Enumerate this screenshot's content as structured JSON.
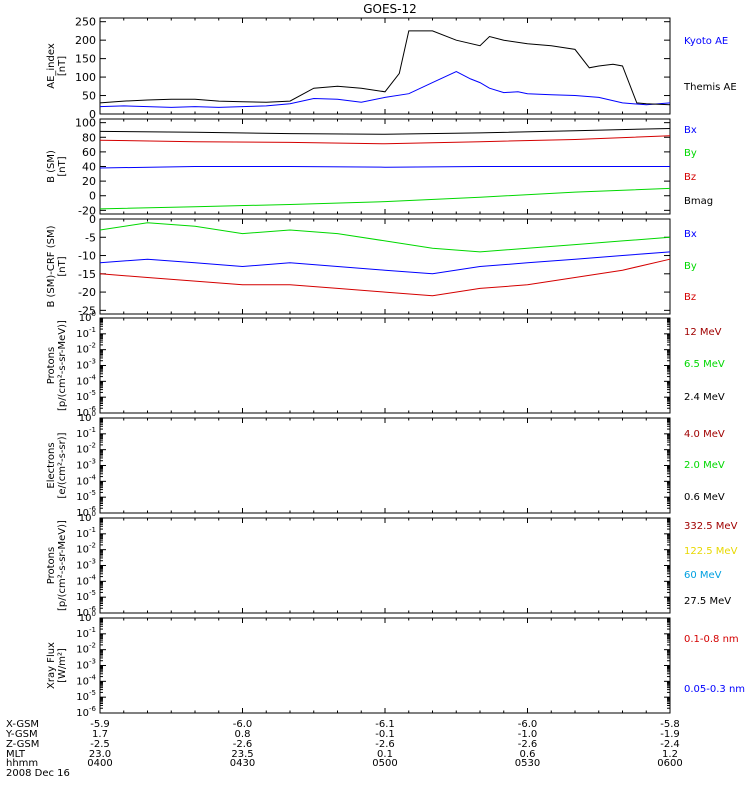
{
  "title": "GOES-12",
  "colors": {
    "black": "#000000",
    "blue": "#0000ff",
    "red": "#d40000",
    "green": "#00d800",
    "darkred": "#a00000",
    "gold": "#e8d800",
    "cyan": "#00a0e0",
    "axis": "#000000"
  },
  "chart_data": [
    {
      "type": "line",
      "id": "ae",
      "ylabel": [
        "AE_index",
        "[nT]"
      ],
      "ylim": [
        0,
        260
      ],
      "ticks": [
        0,
        50,
        100,
        150,
        200,
        250
      ],
      "tick_labels": [
        "0",
        "50",
        "100",
        "150",
        "200",
        "250"
      ],
      "series": [
        {
          "name": "Kyoto AE",
          "color": "#0000ff",
          "x": [
            0,
            5,
            10,
            15,
            20,
            25,
            30,
            35,
            40,
            45,
            50,
            55,
            60,
            65,
            70,
            75,
            78,
            80,
            82,
            85,
            88,
            90,
            95,
            100,
            105,
            110,
            115,
            120
          ],
          "y": [
            20,
            22,
            20,
            18,
            20,
            18,
            20,
            22,
            28,
            42,
            40,
            32,
            45,
            55,
            85,
            115,
            95,
            85,
            70,
            58,
            60,
            55,
            52,
            50,
            45,
            30,
            25,
            30
          ]
        },
        {
          "name": "Themis AE",
          "color": "#000000",
          "x": [
            0,
            5,
            10,
            15,
            20,
            25,
            30,
            35,
            40,
            45,
            50,
            55,
            60,
            63,
            65,
            70,
            75,
            80,
            82,
            85,
            90,
            95,
            100,
            103,
            105,
            108,
            110,
            113,
            115,
            120
          ],
          "y": [
            30,
            35,
            38,
            40,
            40,
            35,
            33,
            32,
            35,
            70,
            75,
            70,
            60,
            110,
            225,
            225,
            200,
            185,
            210,
            200,
            190,
            185,
            175,
            125,
            130,
            135,
            130,
            30,
            28,
            25
          ]
        }
      ]
    },
    {
      "type": "line",
      "id": "bsm",
      "ylabel": [
        "B (SM)",
        "[nT]"
      ],
      "ylim": [
        -25,
        105
      ],
      "ticks": [
        -20,
        0,
        20,
        40,
        60,
        80,
        100
      ],
      "tick_labels": [
        "-20",
        "0",
        "20",
        "40",
        "60",
        "80",
        "100"
      ],
      "series": [
        {
          "name": "Bx",
          "color": "#0000ff",
          "x": [
            0,
            20,
            40,
            60,
            80,
            100,
            120
          ],
          "y": [
            38,
            40,
            40,
            39,
            40,
            40,
            40
          ]
        },
        {
          "name": "By",
          "color": "#00d800",
          "x": [
            0,
            20,
            40,
            60,
            80,
            100,
            120
          ],
          "y": [
            -18,
            -15,
            -12,
            -8,
            -2,
            5,
            10
          ]
        },
        {
          "name": "Bz",
          "color": "#d40000",
          "x": [
            0,
            20,
            40,
            60,
            80,
            100,
            120
          ],
          "y": [
            76,
            74,
            73,
            71,
            74,
            77,
            82
          ]
        },
        {
          "name": "Bmag",
          "color": "#000000",
          "x": [
            0,
            20,
            40,
            60,
            80,
            100,
            120
          ],
          "y": [
            88,
            87,
            85,
            84,
            86,
            89,
            92
          ]
        }
      ]
    },
    {
      "type": "line",
      "id": "bcrf",
      "ylabel": [
        "B (SM)-CRF (SM)",
        "[nT]"
      ],
      "ylim": [
        -26,
        0
      ],
      "ticks": [
        -25,
        -20,
        -15,
        -10,
        -5,
        0
      ],
      "tick_labels": [
        "-25",
        "-20",
        "-15",
        "-10",
        "-5",
        "0"
      ],
      "series": [
        {
          "name": "Bx",
          "color": "#0000ff",
          "x": [
            0,
            10,
            20,
            30,
            40,
            50,
            60,
            70,
            80,
            90,
            100,
            110,
            120
          ],
          "y": [
            -12,
            -11,
            -12,
            -13,
            -12,
            -13,
            -14,
            -15,
            -13,
            -12,
            -11,
            -10,
            -9
          ]
        },
        {
          "name": "By",
          "color": "#00d800",
          "x": [
            0,
            10,
            20,
            30,
            40,
            50,
            60,
            70,
            80,
            90,
            100,
            110,
            120
          ],
          "y": [
            -3,
            -1,
            -2,
            -4,
            -3,
            -4,
            -6,
            -8,
            -9,
            -8,
            -7,
            -6,
            -5
          ]
        },
        {
          "name": "Bz",
          "color": "#d40000",
          "x": [
            0,
            10,
            20,
            30,
            40,
            50,
            60,
            70,
            80,
            90,
            100,
            110,
            120
          ],
          "y": [
            -15,
            -16,
            -17,
            -18,
            -18,
            -19,
            -20,
            -21,
            -19,
            -18,
            -16,
            -14,
            -11
          ]
        }
      ]
    },
    {
      "type": "line",
      "id": "protons1",
      "ylabel": [
        "Protons",
        "[p/(cm²-s-sr-MeV)]"
      ],
      "log": true,
      "ylim": [
        -6,
        0
      ],
      "decades": [
        0,
        -1,
        -2,
        -3,
        -4,
        -5,
        -6
      ],
      "series": [
        {
          "name": "12 MeV",
          "color": "#a00000"
        },
        {
          "name": "6.5 MeV",
          "color": "#00d800"
        },
        {
          "name": "2.4 MeV",
          "color": "#000000"
        }
      ]
    },
    {
      "type": "line",
      "id": "electrons",
      "ylabel": [
        "Electrons",
        "[e/(cm²-s-sr)]"
      ],
      "log": true,
      "ylim": [
        -6,
        0
      ],
      "decades": [
        0,
        -1,
        -2,
        -3,
        -4,
        -5,
        -6
      ],
      "series": [
        {
          "name": "4.0 MeV",
          "color": "#a00000"
        },
        {
          "name": "2.0 MeV",
          "color": "#00d800"
        },
        {
          "name": "0.6 MeV",
          "color": "#000000"
        }
      ]
    },
    {
      "type": "line",
      "id": "protons2",
      "ylabel": [
        "Protons",
        "[p/(cm²-s-sr-MeV)]"
      ],
      "log": true,
      "ylim": [
        -6,
        0
      ],
      "decades": [
        0,
        -1,
        -2,
        -3,
        -4,
        -5,
        -6
      ],
      "series": [
        {
          "name": "332.5 MeV",
          "color": "#a00000"
        },
        {
          "name": "122.5 MeV",
          "color": "#e8d800"
        },
        {
          "name": "60 MeV",
          "color": "#00a0e0"
        },
        {
          "name": "27.5 MeV",
          "color": "#000000"
        }
      ]
    },
    {
      "type": "line",
      "id": "xray",
      "ylabel": [
        "Xray Flux",
        "[W/m²]"
      ],
      "log": true,
      "ylim": [
        -6,
        0
      ],
      "decades": [
        0,
        -1,
        -2,
        -3,
        -4,
        -5,
        -6
      ],
      "series": [
        {
          "name": "0.1-0.8 nm",
          "color": "#d40000"
        },
        {
          "name": "0.05-0.3 nm",
          "color": "#0000ff"
        }
      ]
    }
  ],
  "xaxis": {
    "xlim": [
      0,
      120
    ],
    "major": [
      0,
      30,
      60,
      90,
      120
    ],
    "row_labels": [
      "X-GSM",
      "Y-GSM",
      "Z-GSM",
      "MLT",
      "hhmm"
    ],
    "rows": [
      [
        "-5.9",
        "-6.0",
        "-6.1",
        "-6.0",
        "-5.8"
      ],
      [
        "1.7",
        "0.8",
        "-0.1",
        "-1.0",
        "-1.9"
      ],
      [
        "-2.5",
        "-2.6",
        "-2.6",
        "-2.6",
        "-2.4"
      ],
      [
        "23.0",
        "23.5",
        "0.1",
        "0.6",
        "1.2"
      ],
      [
        "0400",
        "0430",
        "0500",
        "0530",
        "0600"
      ]
    ],
    "date": "2008 Dec 16"
  }
}
